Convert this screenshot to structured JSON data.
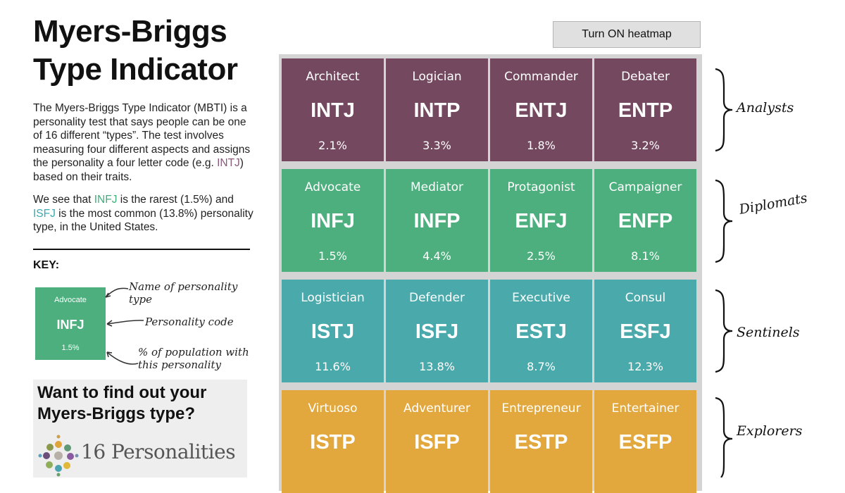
{
  "title": "Myers-Briggs Type Indicator",
  "description": {
    "p1_text": "The Myers-Briggs Type Indicator (MBTI) is a personality test that says people can be one of 16 different “types”. The test involves measuring four different aspects and assigns the personality a four letter code (e.g. ",
    "p1_code": "INTJ",
    "p1_end": ") based on their traits.",
    "p2_a": "We see that ",
    "p2_rare": "INFJ",
    "p2_b": " is the rarest (1.5%) and ",
    "p2_common": "ISFJ",
    "p2_c": " is the most common (13.8%) personality type, in the United States."
  },
  "key": {
    "label": "KEY:",
    "example_name": "Advocate",
    "example_code": "INFJ",
    "example_pct": "1.5%",
    "ann_name": "Name of personality type",
    "ann_code": "Personality code",
    "ann_pct": "% of population with this personality"
  },
  "promo": {
    "title": "Want to find out your Myers-Briggs type?",
    "logo_text": "16 Personalities"
  },
  "heatmap_button": "Turn ON heatmap",
  "groups": [
    {
      "label": "Analysts",
      "color": "#74485f",
      "types": [
        {
          "name": "Architect",
          "code": "INTJ",
          "pct": "2.1%"
        },
        {
          "name": "Logician",
          "code": "INTP",
          "pct": "3.3%"
        },
        {
          "name": "Commander",
          "code": "ENTJ",
          "pct": "1.8%"
        },
        {
          "name": "Debater",
          "code": "ENTP",
          "pct": "3.2%"
        }
      ]
    },
    {
      "label": "Diplomats",
      "color": "#4daf7e",
      "types": [
        {
          "name": "Advocate",
          "code": "INFJ",
          "pct": "1.5%"
        },
        {
          "name": "Mediator",
          "code": "INFP",
          "pct": "4.4%"
        },
        {
          "name": "Protagonist",
          "code": "ENFJ",
          "pct": "2.5%"
        },
        {
          "name": "Campaigner",
          "code": "ENFP",
          "pct": "8.1%"
        }
      ]
    },
    {
      "label": "Sentinels",
      "color": "#4aa9ab",
      "types": [
        {
          "name": "Logistician",
          "code": "ISTJ",
          "pct": "11.6%"
        },
        {
          "name": "Defender",
          "code": "ISFJ",
          "pct": "13.8%"
        },
        {
          "name": "Executive",
          "code": "ESTJ",
          "pct": "8.7%"
        },
        {
          "name": "Consul",
          "code": "ESFJ",
          "pct": "12.3%"
        }
      ]
    },
    {
      "label": "Explorers",
      "color": "#e2a83e",
      "types": [
        {
          "name": "Virtuoso",
          "code": "ISTP",
          "pct": ""
        },
        {
          "name": "Adventurer",
          "code": "ISFP",
          "pct": ""
        },
        {
          "name": "Entrepreneur",
          "code": "ESTP",
          "pct": ""
        },
        {
          "name": "Entertainer",
          "code": "ESFP",
          "pct": ""
        }
      ]
    }
  ]
}
